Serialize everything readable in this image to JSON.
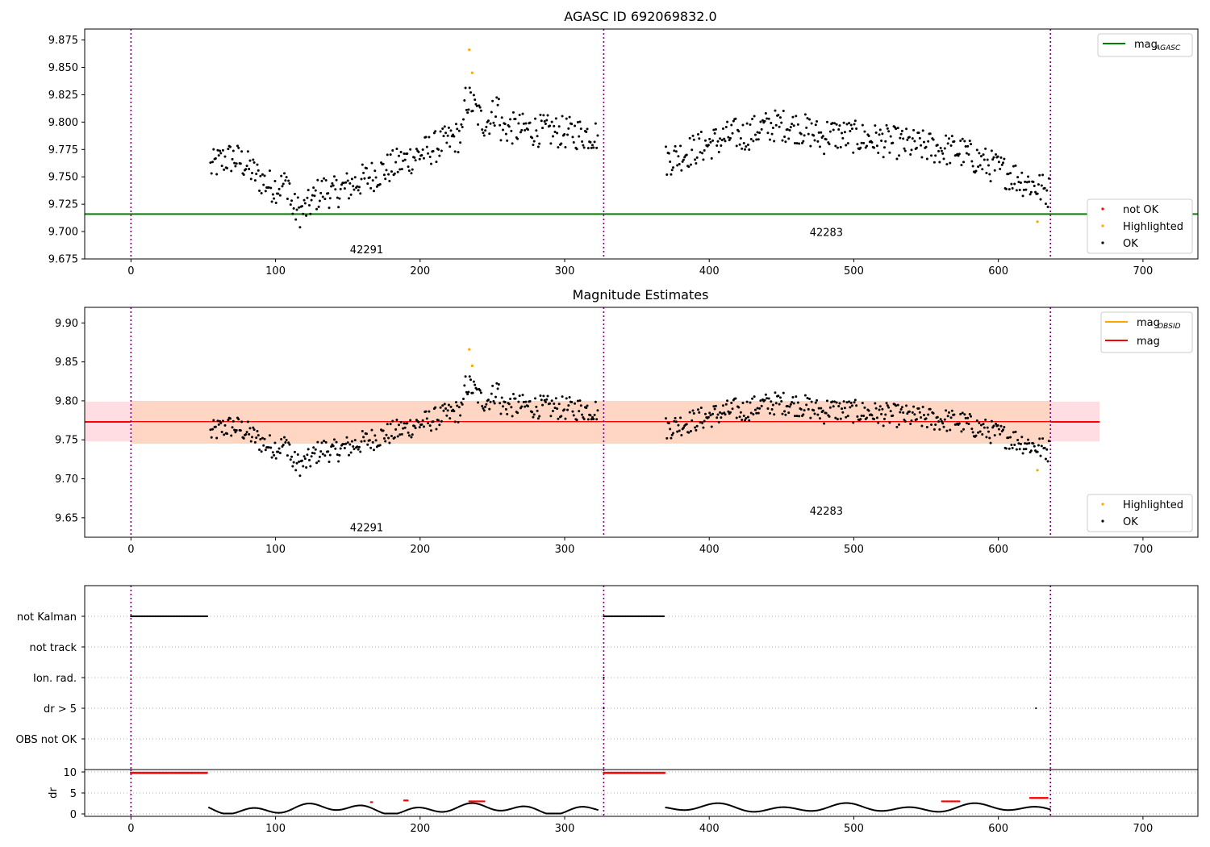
{
  "colors": {
    "ok": "#000000",
    "not_ok": "#ff0000",
    "highlighted": "#ffa500",
    "mag_agasc": "#008000",
    "mag_obsid": "#ffa500",
    "mag": "#ff0000",
    "band_outer": "#ffdde2",
    "band_inner": "#ffd6c4",
    "obs_boundary": "#800080",
    "grid": "#b0b0b0"
  },
  "chart_data": [
    {
      "id": "agasc",
      "type": "scatter",
      "title": "AGASC ID 692069832.0",
      "xlim": [
        -32,
        738
      ],
      "ylim": [
        9.675,
        9.885
      ],
      "xticks": [
        {
          "v": 0,
          "label": "0"
        },
        {
          "v": 100,
          "label": "100"
        },
        {
          "v": 200,
          "label": "200"
        },
        {
          "v": 300,
          "label": "300"
        },
        {
          "v": 400,
          "label": "400"
        },
        {
          "v": 500,
          "label": "500"
        },
        {
          "v": 600,
          "label": "600"
        },
        {
          "v": 700,
          "label": "700"
        }
      ],
      "yticks": [
        {
          "v": 9.675,
          "label": "9.675"
        },
        {
          "v": 9.7,
          "label": "9.700"
        },
        {
          "v": 9.725,
          "label": "9.725"
        },
        {
          "v": 9.75,
          "label": "9.750"
        },
        {
          "v": 9.775,
          "label": "9.775"
        },
        {
          "v": 9.8,
          "label": "9.800"
        },
        {
          "v": 9.825,
          "label": "9.825"
        },
        {
          "v": 9.85,
          "label": "9.850"
        },
        {
          "v": 9.875,
          "label": "9.875"
        }
      ],
      "vlines": [
        0,
        327,
        636
      ],
      "hline": {
        "y": 9.716,
        "name": "mag_AGASC"
      },
      "obs_labels": [
        {
          "x": 163,
          "y": 9.683,
          "text": "42291"
        },
        {
          "x": 481,
          "y": 9.699,
          "text": "42283"
        }
      ],
      "legend_lines": [
        {
          "base": "mag",
          "sub": "AGASC",
          "color_key": "mag_agasc"
        }
      ],
      "legend_points": [
        {
          "label": "not OK",
          "color_key": "not_ok"
        },
        {
          "label": "Highlighted",
          "color_key": "highlighted"
        },
        {
          "label": "OK",
          "color_key": "ok"
        }
      ],
      "highlighted_points": [
        [
          234,
          9.866
        ],
        [
          236,
          9.845
        ],
        [
          627,
          9.709
        ]
      ]
    },
    {
      "id": "estimates",
      "type": "scatter",
      "title": "Magnitude Estimates",
      "xlim": [
        -32,
        738
      ],
      "ylim": [
        9.625,
        9.92
      ],
      "xticks": [
        {
          "v": 0,
          "label": "0"
        },
        {
          "v": 100,
          "label": "100"
        },
        {
          "v": 200,
          "label": "200"
        },
        {
          "v": 300,
          "label": "300"
        },
        {
          "v": 400,
          "label": "400"
        },
        {
          "v": 500,
          "label": "500"
        },
        {
          "v": 600,
          "label": "600"
        },
        {
          "v": 700,
          "label": "700"
        }
      ],
      "yticks": [
        {
          "v": 9.65,
          "label": "9.65"
        },
        {
          "v": 9.7,
          "label": "9.70"
        },
        {
          "v": 9.75,
          "label": "9.75"
        },
        {
          "v": 9.8,
          "label": "9.80"
        },
        {
          "v": 9.85,
          "label": "9.85"
        },
        {
          "v": 9.9,
          "label": "9.90"
        }
      ],
      "vlines": [
        0,
        327,
        636
      ],
      "mag": 9.773,
      "band_outer": {
        "x0": -32,
        "x1": 670,
        "y0": 9.748,
        "y1": 9.799
      },
      "band_inner": {
        "x0": 0,
        "x1": 636,
        "y0": 9.745,
        "y1": 9.8
      },
      "obs_labels": [
        {
          "x": 163,
          "y": 9.637,
          "text": "42291"
        },
        {
          "x": 481,
          "y": 9.658,
          "text": "42283"
        }
      ],
      "legend_lines": [
        {
          "base": "mag",
          "sub": "OBSID",
          "color_key": "mag_obsid"
        },
        {
          "base": "mag",
          "sub": "",
          "color_key": "mag"
        }
      ],
      "legend_points": [
        {
          "label": "Highlighted",
          "color_key": "highlighted"
        },
        {
          "label": "OK",
          "color_key": "ok"
        }
      ],
      "highlighted_points": [
        [
          234,
          9.866
        ],
        [
          236,
          9.845
        ],
        [
          627,
          9.711
        ]
      ]
    },
    {
      "id": "flags",
      "type": "scatter",
      "xlim": [
        -32,
        738
      ],
      "categories": [
        "not Kalman",
        "not track",
        "Ion. rad.",
        "dr > 5",
        "OBS not OK"
      ],
      "vlines": [
        0,
        327,
        636
      ],
      "flag_ranges": [
        {
          "category": "not Kalman",
          "x0": 0,
          "x1": 53
        },
        {
          "category": "not Kalman",
          "x0": 327,
          "x1": 369
        }
      ],
      "flag_points": [
        {
          "category": "Ion. rad.",
          "x": 327
        },
        {
          "category": "dr > 5",
          "x": 327
        },
        {
          "category": "dr > 5",
          "x": 626
        }
      ]
    },
    {
      "id": "dr",
      "type": "scatter",
      "ylabel": "dr",
      "xlim": [
        -32,
        738
      ],
      "ylim": [
        0,
        10
      ],
      "xticks": [
        {
          "v": 0,
          "label": "0"
        },
        {
          "v": 100,
          "label": "100"
        },
        {
          "v": 200,
          "label": "200"
        },
        {
          "v": 300,
          "label": "300"
        },
        {
          "v": 400,
          "label": "400"
        },
        {
          "v": 500,
          "label": "500"
        },
        {
          "v": 600,
          "label": "600"
        },
        {
          "v": 700,
          "label": "700"
        }
      ],
      "yticks": [
        {
          "v": 0,
          "label": "0"
        },
        {
          "v": 5,
          "label": "5"
        },
        {
          "v": 10,
          "label": "10"
        }
      ],
      "vlines": [
        0,
        327,
        636
      ],
      "clipped_ranges": [
        {
          "x0": 0,
          "x1": 53,
          "y": 9.8
        },
        {
          "x0": 327,
          "x1": 369,
          "y": 9.8
        }
      ],
      "red_segments": [
        {
          "x0": 166,
          "x1": 167,
          "y": 2.8
        },
        {
          "x0": 189,
          "x1": 192,
          "y": 3.2
        },
        {
          "x0": 234,
          "x1": 245,
          "y": 3.0
        },
        {
          "x0": 561,
          "x1": 573,
          "y": 3.0
        },
        {
          "x0": 622,
          "x1": 634,
          "y": 3.8
        }
      ],
      "gaps": [
        [
          0,
          54
        ],
        [
          327,
          370
        ]
      ]
    }
  ]
}
